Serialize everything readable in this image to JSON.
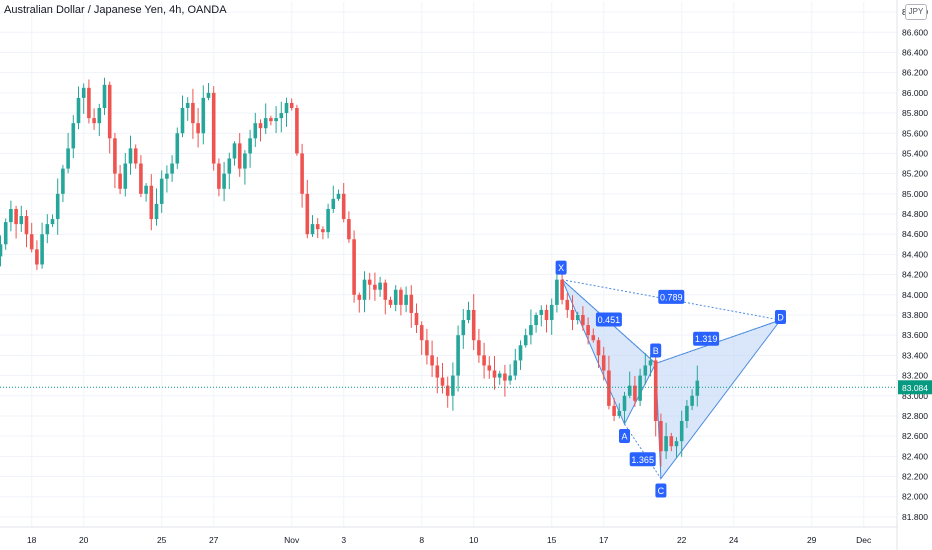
{
  "header": {
    "title": "Australian Dollar / Japanese Yen, 4h, OANDA",
    "currency_button": "JPY"
  },
  "price_label": {
    "value": "83.084",
    "color": "#089981"
  },
  "colors": {
    "up": "#26a69a",
    "down": "#ef5350",
    "pattern_fill": "#bbd4f5",
    "pattern_line": "#4e8de0",
    "label_bg": "#2962ff",
    "grid": "#f0f3fa",
    "axis_text": "#131722"
  },
  "chart_data": {
    "type": "candlestick",
    "symbol": "AUDJPY",
    "timeframe": "4h",
    "ylim": [
      81.7,
      86.9
    ],
    "y_ticks": [
      "81.800",
      "82.000",
      "82.200",
      "82.400",
      "82.600",
      "82.800",
      "83.000",
      "83.200",
      "83.400",
      "83.600",
      "83.800",
      "84.000",
      "84.200",
      "84.400",
      "84.600",
      "84.800",
      "85.000",
      "85.200",
      "85.400",
      "85.600",
      "85.800",
      "86.000",
      "86.200",
      "86.400",
      "86.600",
      "86.800"
    ],
    "x_ticks": [
      {
        "label": "18",
        "bar": 6
      },
      {
        "label": "20",
        "bar": 16
      },
      {
        "label": "25",
        "bar": 31
      },
      {
        "label": "27",
        "bar": 41
      },
      {
        "label": "Nov",
        "bar": 56
      },
      {
        "label": "3",
        "bar": 66
      },
      {
        "label": "8",
        "bar": 81
      },
      {
        "label": "10",
        "bar": 91
      },
      {
        "label": "15",
        "bar": 106
      },
      {
        "label": "17",
        "bar": 116
      },
      {
        "label": "22",
        "bar": 131
      },
      {
        "label": "24",
        "bar": 141
      },
      {
        "label": "29",
        "bar": 156
      },
      {
        "label": "Dec",
        "bar": 166
      }
    ],
    "closes": [
      84.5,
      84.72,
      84.85,
      84.7,
      84.78,
      84.6,
      84.45,
      84.3,
      84.6,
      84.7,
      84.75,
      85.0,
      85.25,
      85.45,
      85.7,
      85.95,
      86.05,
      85.75,
      85.7,
      85.85,
      86.08,
      85.55,
      85.2,
      85.05,
      85.3,
      85.45,
      85.3,
      85.0,
      85.08,
      84.75,
      84.9,
      85.15,
      85.2,
      85.3,
      85.6,
      85.85,
      85.9,
      85.7,
      85.6,
      85.95,
      86.0,
      85.3,
      85.05,
      85.2,
      85.35,
      85.5,
      85.25,
      85.4,
      85.55,
      85.7,
      85.65,
      85.75,
      85.72,
      85.75,
      85.8,
      85.9,
      85.85,
      85.4,
      85.0,
      84.6,
      84.7,
      84.65,
      84.62,
      84.85,
      84.95,
      85.0,
      84.75,
      84.55,
      84.0,
      83.95,
      84.15,
      84.1,
      84.05,
      84.12,
      83.95,
      83.9,
      84.05,
      83.9,
      84.0,
      83.82,
      83.7,
      83.55,
      83.4,
      83.3,
      83.18,
      83.1,
      83.0,
      83.2,
      83.6,
      83.75,
      83.85,
      83.55,
      83.4,
      83.3,
      83.25,
      83.18,
      83.22,
      83.15,
      83.2,
      83.35,
      83.5,
      83.6,
      83.7,
      83.8,
      83.85,
      83.75,
      83.9,
      84.15,
      83.95,
      83.85,
      83.75,
      83.8,
      83.7,
      83.6,
      83.55,
      83.4,
      83.25,
      82.9,
      82.8,
      82.85,
      83.0,
      83.1,
      82.95,
      83.2,
      83.3,
      83.35,
      82.75,
      82.45,
      82.6,
      82.5,
      82.55,
      82.75,
      82.9,
      83.0,
      83.15
    ],
    "xabcd_pattern": {
      "points": [
        {
          "label": "X",
          "bar": 108,
          "price": 84.15
        },
        {
          "label": "A",
          "bar": 120,
          "price": 82.72
        },
        {
          "label": "B",
          "bar": 126,
          "price": 83.32
        },
        {
          "label": "C",
          "bar": 127,
          "price": 82.18
        },
        {
          "label": "D",
          "bar": 150,
          "price": 83.75
        }
      ],
      "ratios": [
        {
          "value": "0.451",
          "between": [
            "X",
            "B"
          ]
        },
        {
          "value": "1.365",
          "between": [
            "A",
            "C"
          ]
        },
        {
          "value": "1.319",
          "between": [
            "B",
            "D"
          ]
        },
        {
          "value": "0.789",
          "between": [
            "X",
            "D"
          ]
        }
      ]
    }
  }
}
